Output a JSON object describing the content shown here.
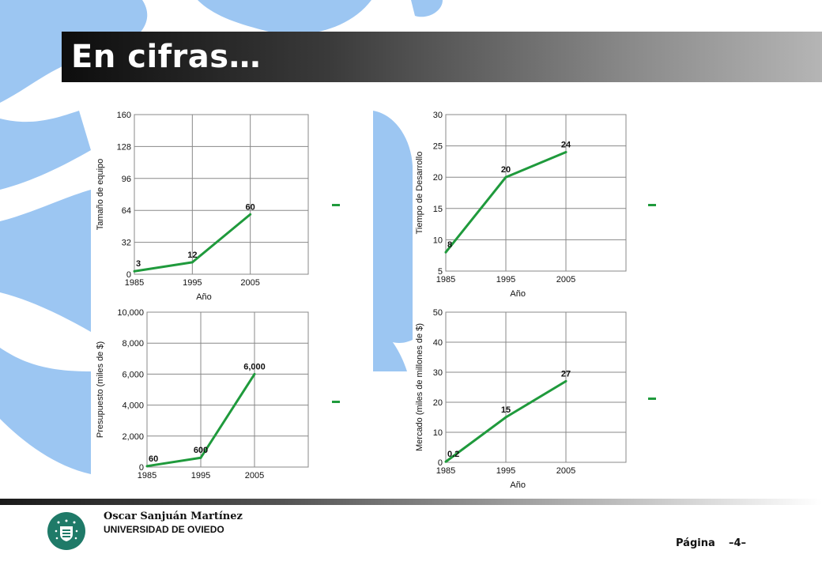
{
  "slide": {
    "title": "En cifras…",
    "author": "Oscar Sanjuán Martínez",
    "university": "UNIVERSIDAD DE OVIEDO",
    "page_label": "Página",
    "page_number": "–4–"
  },
  "colors": {
    "series": "#1f9a3c",
    "sea": "#9cc6f2",
    "title_bar_start": "#0d0d0d",
    "title_bar_end": "#b5b5b5",
    "logo": "#1f7a68"
  },
  "chart_data": [
    {
      "type": "line",
      "title": "",
      "xlabel": "Año",
      "ylabel": "Tamaño de equipo",
      "x": [
        1985,
        1995,
        2005
      ],
      "values": [
        3,
        12,
        60
      ],
      "data_labels": [
        "3",
        "12",
        "60"
      ],
      "xlim": [
        1985,
        2015
      ],
      "ylim": [
        0,
        160
      ],
      "xticks": [
        "1985",
        "1995",
        "2005"
      ],
      "yticks": [
        "0",
        "32",
        "64",
        "96",
        "128",
        "160"
      ],
      "grid": true
    },
    {
      "type": "line",
      "title": "",
      "xlabel": "Año",
      "ylabel": "Tiempo de Desarrollo",
      "x": [
        1985,
        1995,
        2005
      ],
      "values": [
        8,
        20,
        24
      ],
      "data_labels": [
        "8",
        "20",
        "24"
      ],
      "xlim": [
        1985,
        2015
      ],
      "ylim": [
        5,
        30
      ],
      "xticks": [
        "1985",
        "1995",
        "2005"
      ],
      "yticks": [
        "5",
        "10",
        "15",
        "20",
        "25",
        "30"
      ],
      "grid": true
    },
    {
      "type": "line",
      "title": "",
      "xlabel": "",
      "ylabel": "Presupuesto (miles de $)",
      "x": [
        1985,
        1995,
        2005
      ],
      "values": [
        60,
        600,
        6000
      ],
      "data_labels": [
        "60",
        "600",
        "6,000"
      ],
      "xlim": [
        1985,
        2015
      ],
      "ylim": [
        0,
        10000
      ],
      "xticks": [
        "1985",
        "1995",
        "2005"
      ],
      "yticks": [
        "0",
        "2,000",
        "4,000",
        "6,000",
        "8,000",
        "10,000"
      ],
      "grid": true
    },
    {
      "type": "line",
      "title": "",
      "xlabel": "Año",
      "ylabel": "Mercado (miles de millones de $)",
      "x": [
        1985,
        1995,
        2005
      ],
      "values": [
        0.2,
        15,
        27
      ],
      "data_labels": [
        "0.2",
        "15",
        "27"
      ],
      "xlim": [
        1985,
        2015
      ],
      "ylim": [
        0,
        50
      ],
      "xticks": [
        "1985",
        "1995",
        "2005"
      ],
      "yticks": [
        "0",
        "10",
        "20",
        "30",
        "40",
        "50"
      ],
      "grid": true
    }
  ]
}
